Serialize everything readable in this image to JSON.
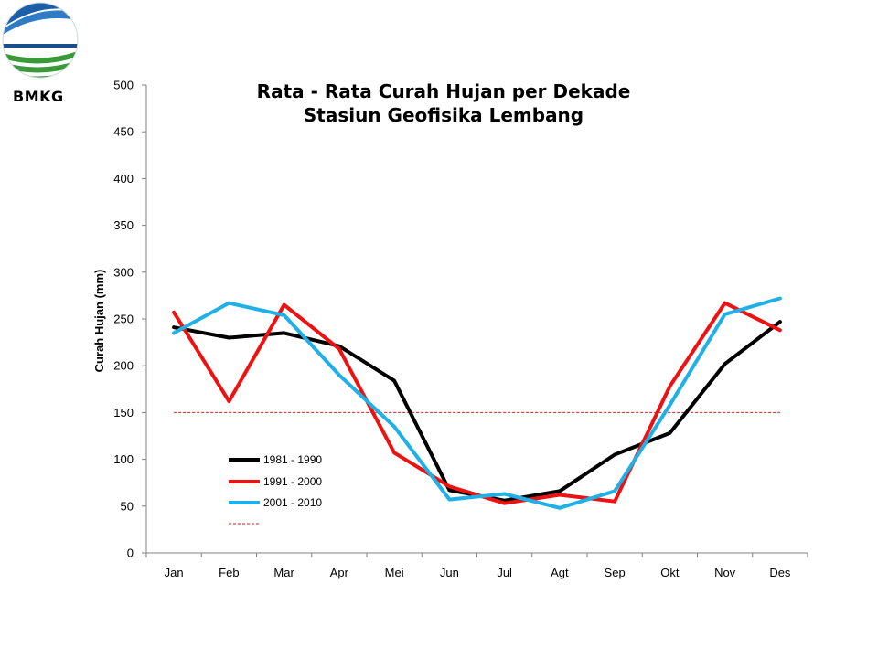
{
  "logo": {
    "text": "BMKG"
  },
  "chart_data": {
    "type": "line",
    "title": [
      "Rata - Rata Curah Hujan per Dekade",
      "Stasiun Geofisika Lembang"
    ],
    "xlabel": "",
    "ylabel": "Curah Hujan (mm)",
    "ylim": [
      0,
      500
    ],
    "yticks": [
      0,
      50,
      100,
      150,
      200,
      250,
      300,
      350,
      400,
      450,
      500
    ],
    "categories": [
      "Jan",
      "Feb",
      "Mar",
      "Apr",
      "Mei",
      "Jun",
      "Jul",
      "Agt",
      "Sep",
      "Okt",
      "Nov",
      "Des"
    ],
    "series": [
      {
        "name": "1981 - 1990",
        "color": "#000000",
        "values": [
          241,
          230,
          235,
          221,
          184,
          67,
          56,
          66,
          105,
          128,
          202,
          247
        ]
      },
      {
        "name": "1991 - 2000",
        "color": "#ee1111",
        "values": [
          257,
          162,
          265,
          218,
          107,
          71,
          53,
          62,
          55,
          178,
          267,
          238
        ]
      },
      {
        "name": "2001 - 2010",
        "color": "#1fb0e6",
        "values": [
          235,
          267,
          254,
          190,
          135,
          57,
          63,
          48,
          66,
          158,
          255,
          272
        ]
      }
    ],
    "reference_line": {
      "value": 150,
      "color": "#cc2222",
      "style": "dashed"
    },
    "legend": "bottom-left"
  }
}
